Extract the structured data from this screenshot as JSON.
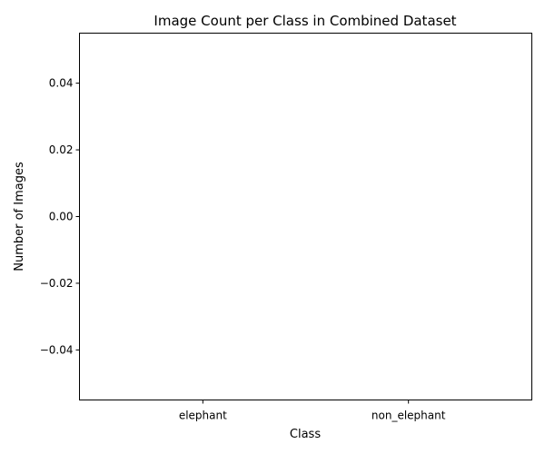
{
  "chart_data": {
    "type": "bar",
    "title": "Image Count per Class in Combined Dataset",
    "xlabel": "Class",
    "ylabel": "Number of Images",
    "categories": [
      "elephant",
      "non_elephant"
    ],
    "values": [
      0,
      0
    ],
    "ylim": [
      -0.055,
      0.055
    ],
    "yticks": [
      0.04,
      0.02,
      0.0,
      -0.02,
      -0.04
    ],
    "ytick_labels": [
      "0.04",
      "0.02",
      "0.00",
      "−0.02",
      "−0.04"
    ],
    "grid": false,
    "legend": "none"
  }
}
